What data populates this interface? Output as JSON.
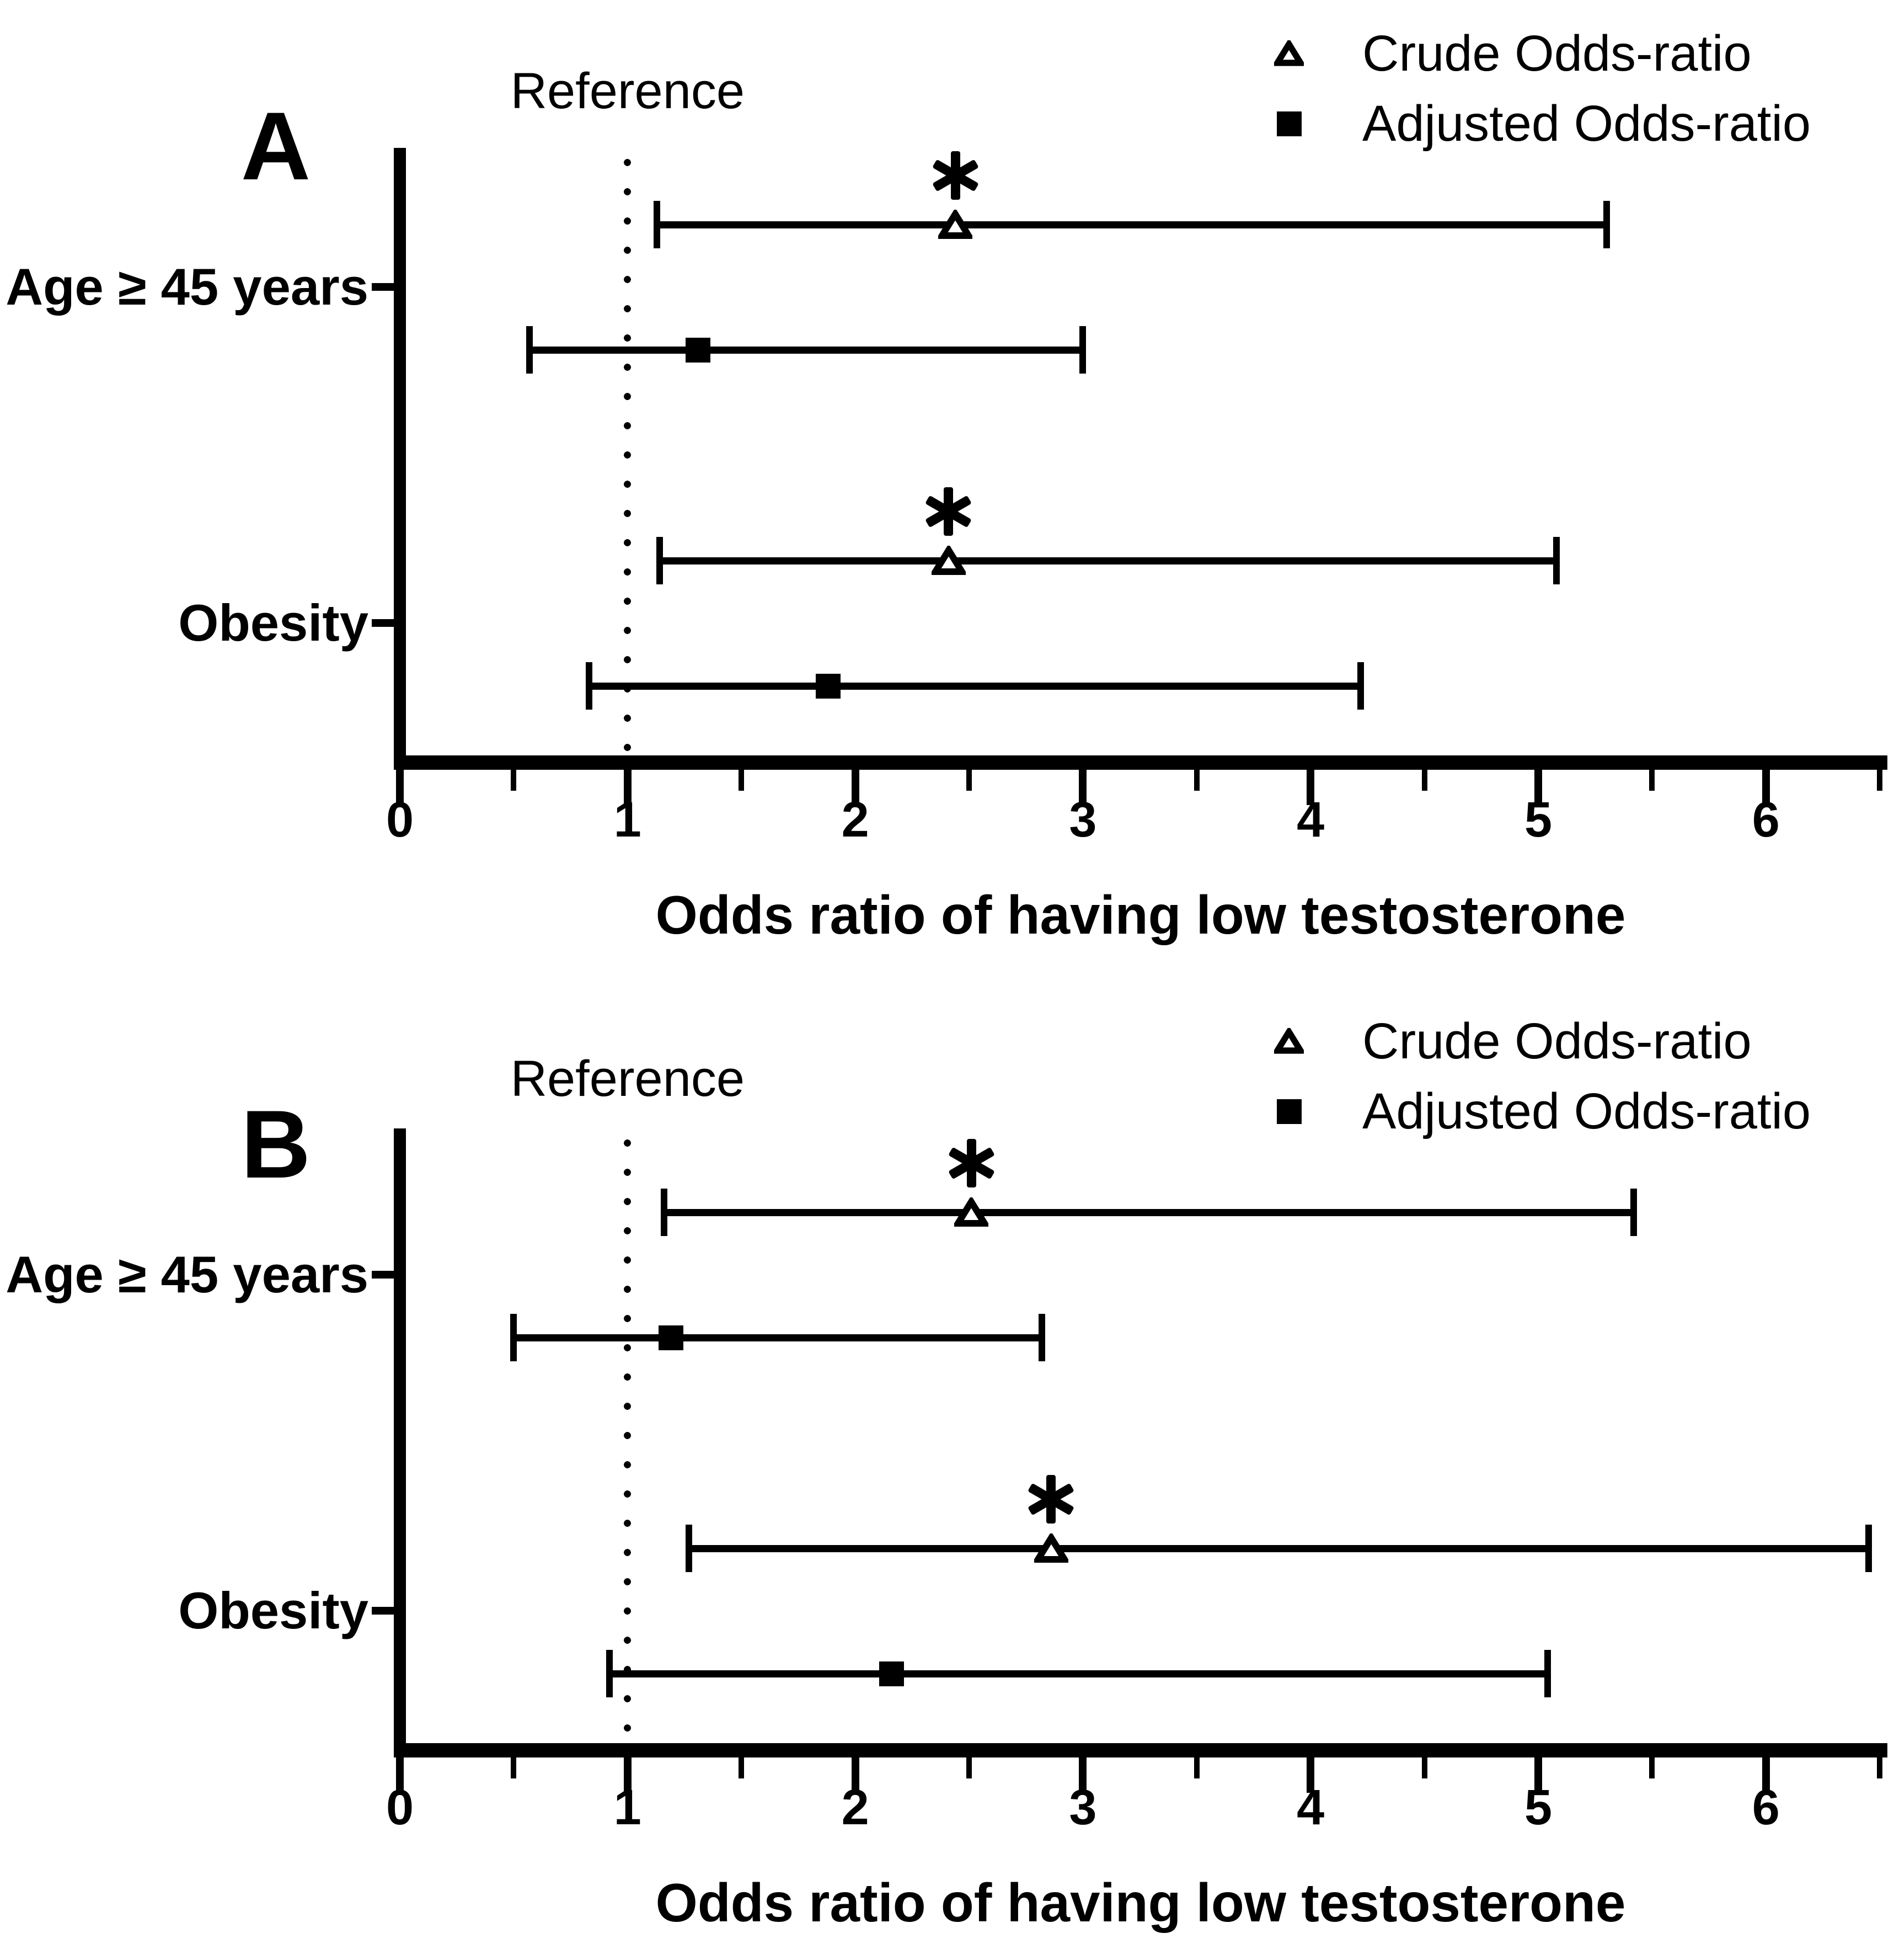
{
  "figure": {
    "background": "#ffffff",
    "foreground": "#000000",
    "significance_marker": "*"
  },
  "chart_data": [
    {
      "type": "forest",
      "panel_label": "A",
      "xlabel": "Odds ratio of having low testosterone",
      "x_ticks": [
        "0",
        "1",
        "2",
        "3",
        "4",
        "5",
        "6"
      ],
      "x_minor_ticks": [
        0.5,
        1.5,
        2.5,
        3.5,
        4.5,
        5.5,
        6.5
      ],
      "xlim": [
        0,
        6.55
      ],
      "grid": false,
      "reference": {
        "x": 1,
        "label": "Reference"
      },
      "legend": {
        "position": "top-right",
        "items": [
          {
            "marker": "open-triangle-icon",
            "label": "Crude Odds-ratio"
          },
          {
            "marker": "filled-square-icon",
            "label": "Adjusted Odds-ratio"
          }
        ]
      },
      "categories": [
        "Age ≥ 45 years",
        "Obesity"
      ],
      "rows": [
        {
          "category": "Age ≥ 45 years",
          "series": "Crude Odds-ratio",
          "marker": "open-triangle-icon",
          "or": 2.44,
          "ci_low": 1.13,
          "ci_high": 5.3,
          "significant": true
        },
        {
          "category": "Age ≥ 45 years",
          "series": "Adjusted Odds-ratio",
          "marker": "filled-square-icon",
          "or": 1.31,
          "ci_low": 0.57,
          "ci_high": 3.0,
          "significant": false
        },
        {
          "category": "Obesity",
          "series": "Crude Odds-ratio",
          "marker": "open-triangle-icon",
          "or": 2.41,
          "ci_low": 1.14,
          "ci_high": 5.08,
          "significant": true
        },
        {
          "category": "Obesity",
          "series": "Adjusted Odds-ratio",
          "marker": "filled-square-icon",
          "or": 1.88,
          "ci_low": 0.83,
          "ci_high": 4.22,
          "significant": false
        }
      ]
    },
    {
      "type": "forest",
      "panel_label": "B",
      "xlabel": "Odds ratio of having low testosterone",
      "x_ticks": [
        "0",
        "1",
        "2",
        "3",
        "4",
        "5",
        "6"
      ],
      "x_minor_ticks": [
        0.5,
        1.5,
        2.5,
        3.5,
        4.5,
        5.5,
        6.5
      ],
      "xlim": [
        0,
        6.55
      ],
      "grid": false,
      "reference": {
        "x": 1,
        "label": "Reference"
      },
      "legend": {
        "position": "top-right",
        "items": [
          {
            "marker": "open-triangle-icon",
            "label": "Crude Odds-ratio"
          },
          {
            "marker": "filled-square-icon",
            "label": "Adjusted Odds-ratio"
          }
        ]
      },
      "categories": [
        "Age ≥ 45 years",
        "Obesity"
      ],
      "rows": [
        {
          "category": "Age ≥ 45 years",
          "series": "Crude Odds-ratio",
          "marker": "open-triangle-icon",
          "or": 2.51,
          "ci_low": 1.16,
          "ci_high": 5.42,
          "significant": true
        },
        {
          "category": "Age ≥ 45 years",
          "series": "Adjusted Odds-ratio",
          "marker": "filled-square-icon",
          "or": 1.19,
          "ci_low": 0.5,
          "ci_high": 2.82,
          "significant": false
        },
        {
          "category": "Obesity",
          "series": "Crude Odds-ratio",
          "marker": "open-triangle-icon",
          "or": 2.86,
          "ci_low": 1.27,
          "ci_high": 6.45,
          "significant": true
        },
        {
          "category": "Obesity",
          "series": "Adjusted Odds-ratio",
          "marker": "filled-square-icon",
          "or": 2.16,
          "ci_low": 0.92,
          "ci_high": 5.04,
          "significant": false
        }
      ]
    }
  ]
}
